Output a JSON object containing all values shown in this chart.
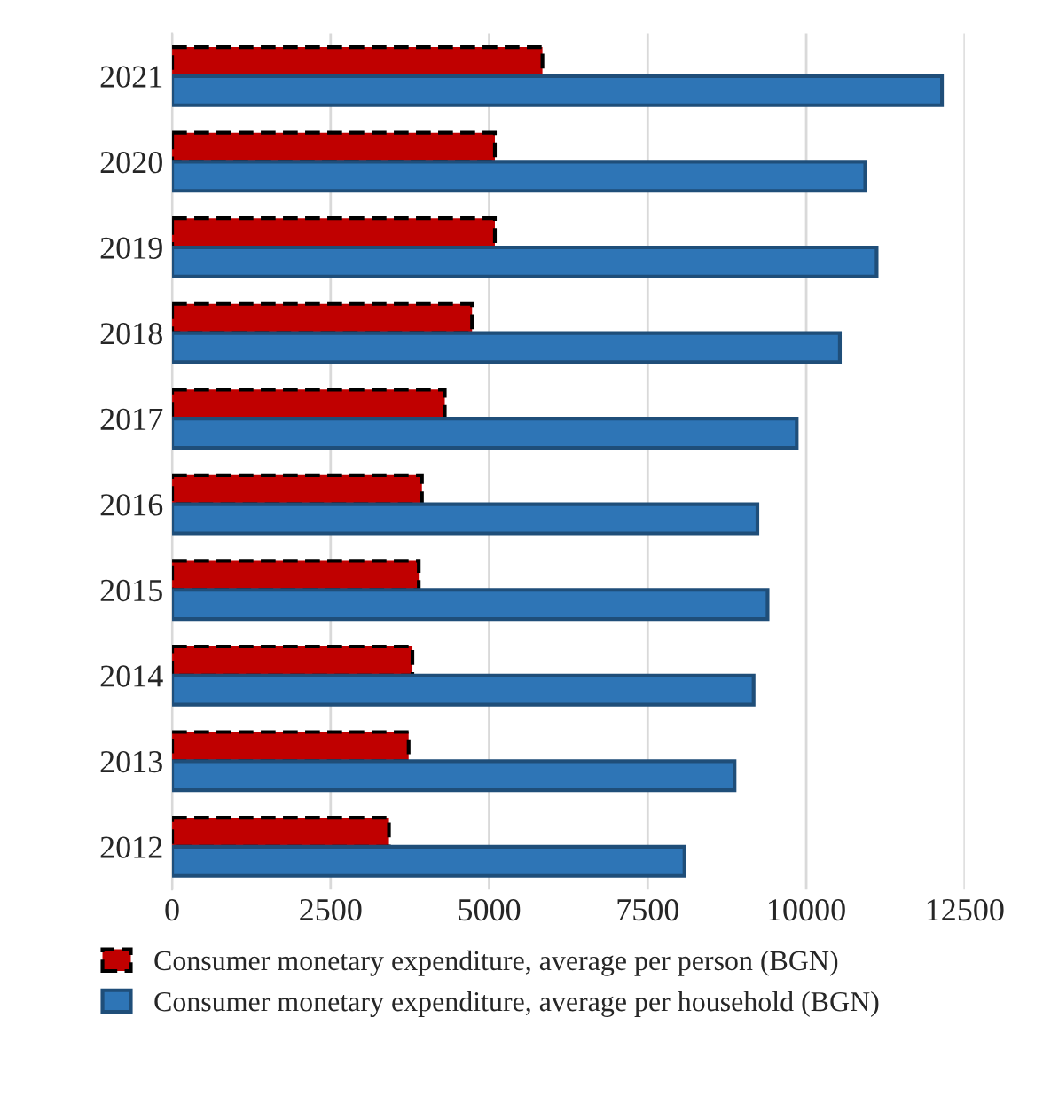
{
  "chart_data": {
    "type": "bar",
    "orientation": "horizontal",
    "categories": [
      "2021",
      "2020",
      "2019",
      "2018",
      "2017",
      "2016",
      "2015",
      "2014",
      "2013",
      "2012"
    ],
    "series": [
      {
        "name": "Consumer monetary expenditure, average per person (BGN)",
        "color": "#c00000",
        "line_style": "dashed",
        "values": [
          5840,
          5090,
          5090,
          4730,
          4300,
          3940,
          3890,
          3790,
          3730,
          3420
        ]
      },
      {
        "name": "Consumer monetary expenditure, average per household (BGN)",
        "color": "#2e75b6",
        "line_style": "solid",
        "values": [
          12140,
          10930,
          11110,
          10530,
          9850,
          9230,
          9390,
          9170,
          8870,
          8080
        ]
      }
    ],
    "xlim": [
      0,
      12500
    ],
    "xticks": [
      0,
      2500,
      5000,
      7500,
      10000,
      12500
    ],
    "grid": "x",
    "legend": "bottom"
  }
}
